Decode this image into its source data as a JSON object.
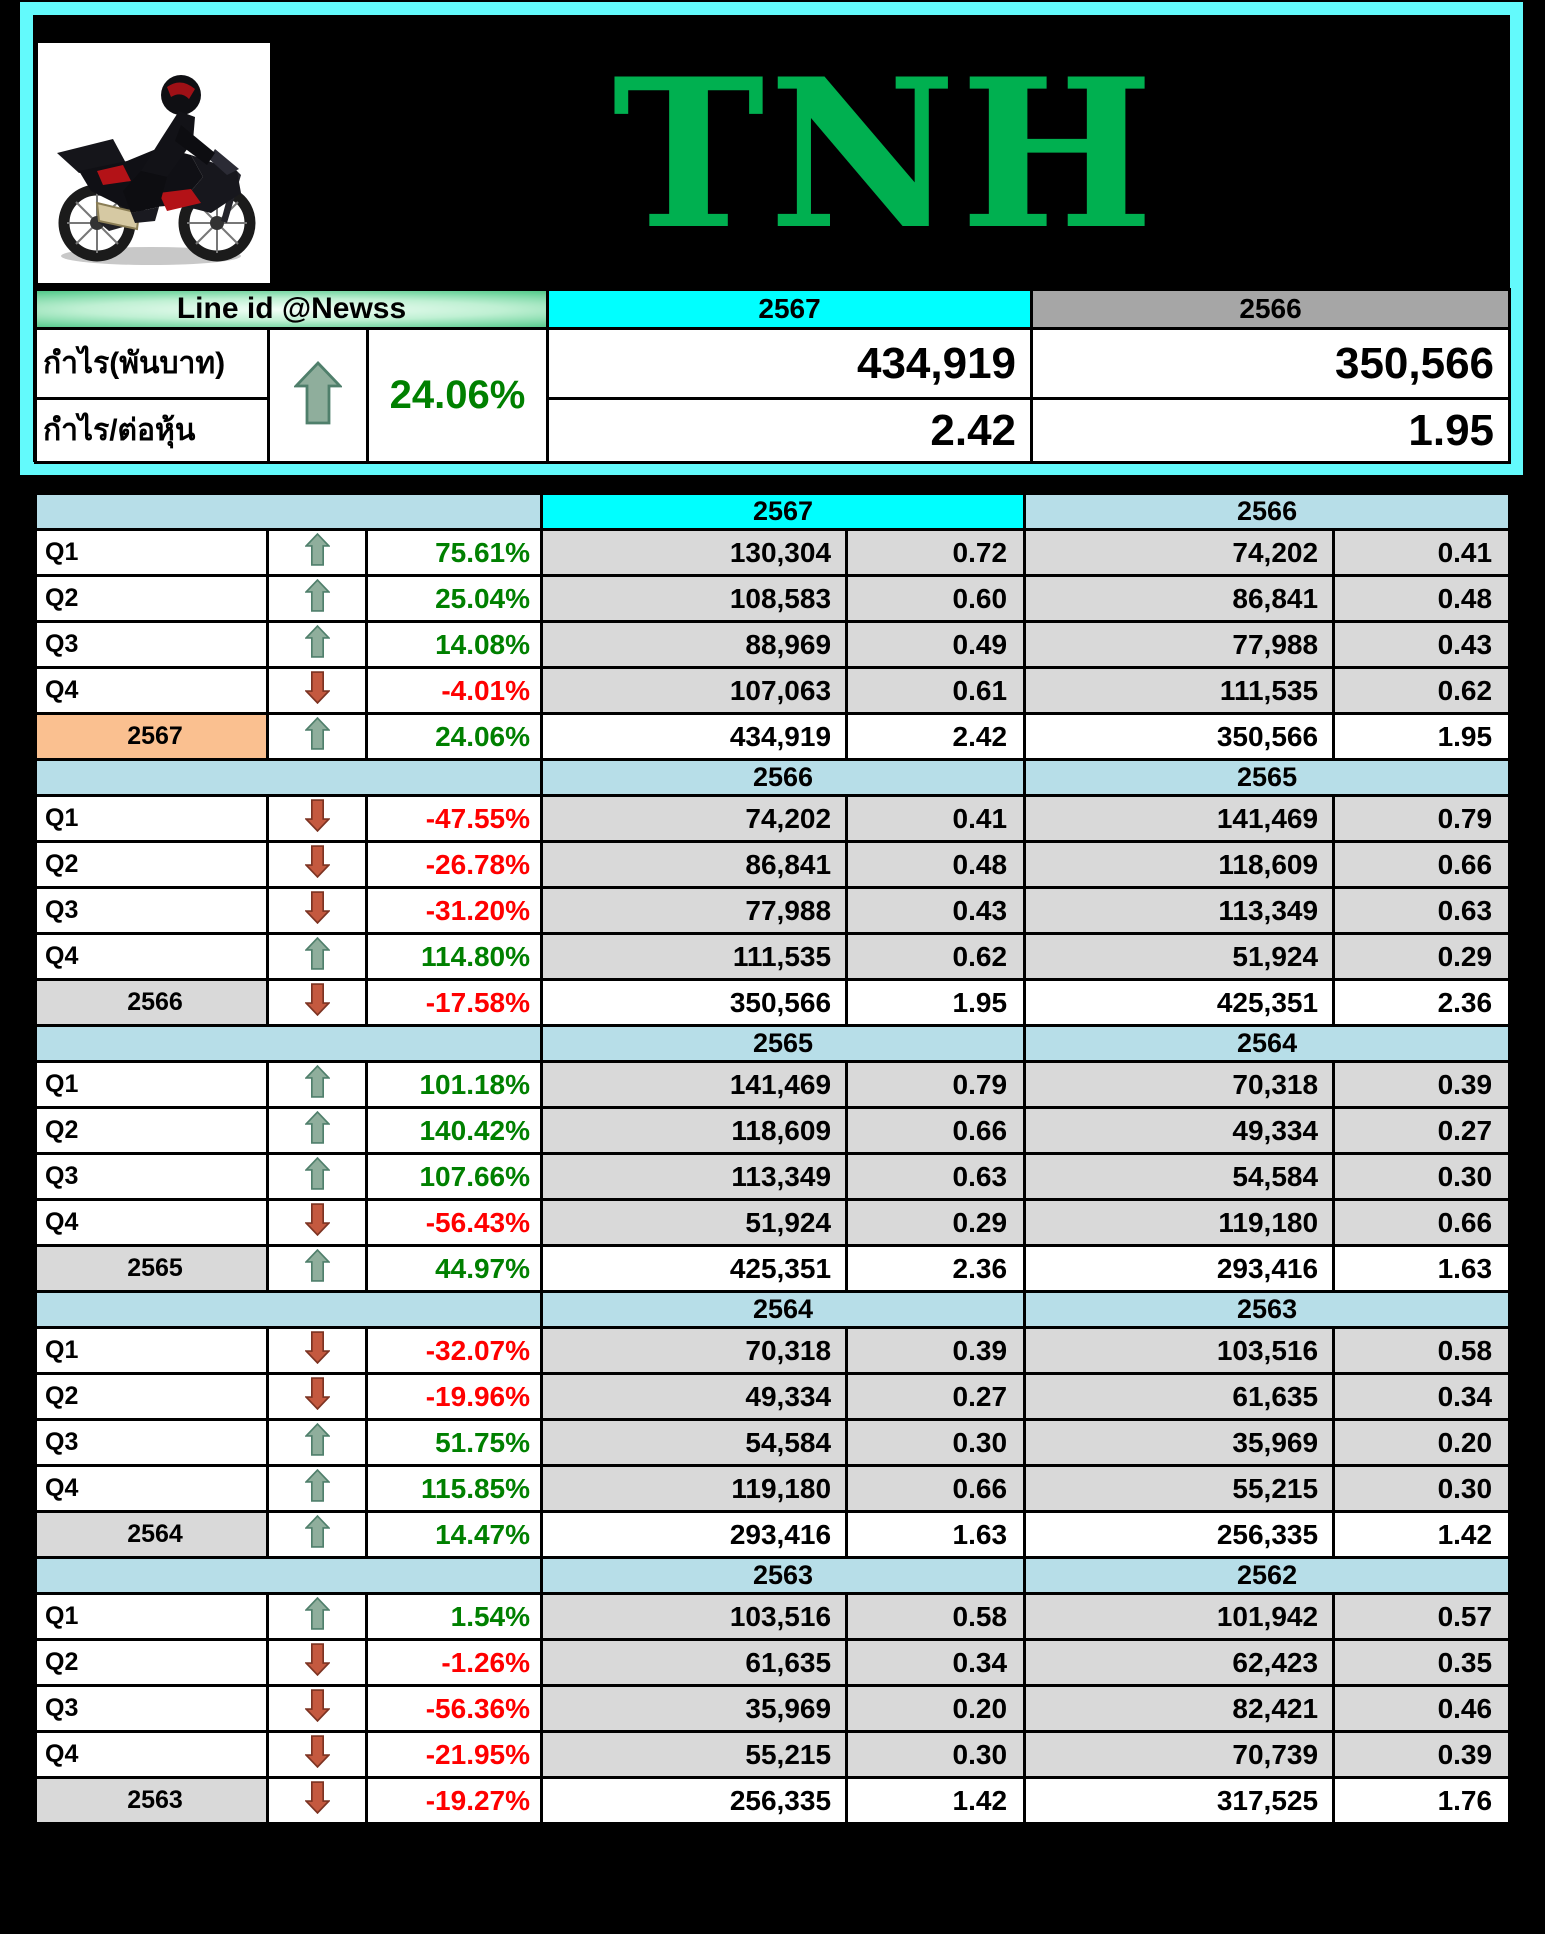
{
  "title": "TNH",
  "summary": {
    "line_id": "Line id @Newss",
    "col_current": "2567",
    "col_previous": "2566",
    "change_percent": "24.06%",
    "change_direction": "up",
    "rows": [
      {
        "label": "กำไร(พันบาท)",
        "current": "434,919",
        "previous": "350,566"
      },
      {
        "label": "กำไร/ต่อหุ้น",
        "current": "2.42",
        "previous": "1.95"
      }
    ]
  },
  "sections": [
    {
      "year_left": "2567",
      "year_right": "2566",
      "highlight_left": true,
      "rows": [
        {
          "type": "quarter",
          "label": "Q1",
          "dir": "up",
          "pct": "75.61%",
          "v1": "130,304",
          "e1": "0.72",
          "v2": "74,202",
          "e2": "0.41"
        },
        {
          "type": "quarter",
          "label": "Q2",
          "dir": "up",
          "pct": "25.04%",
          "v1": "108,583",
          "e1": "0.60",
          "v2": "86,841",
          "e2": "0.48"
        },
        {
          "type": "quarter",
          "label": "Q3",
          "dir": "up",
          "pct": "14.08%",
          "v1": "88,969",
          "e1": "0.49",
          "v2": "77,988",
          "e2": "0.43"
        },
        {
          "type": "quarter",
          "label": "Q4",
          "dir": "down",
          "pct": "-4.01%",
          "v1": "107,063",
          "e1": "0.61",
          "v2": "111,535",
          "e2": "0.62"
        },
        {
          "type": "year",
          "label_bg": "orange",
          "label": "2567",
          "dir": "up",
          "pct": "24.06%",
          "v1": "434,919",
          "e1": "2.42",
          "v2": "350,566",
          "e2": "1.95"
        }
      ]
    },
    {
      "year_left": "2566",
      "year_right": "2565",
      "highlight_left": false,
      "rows": [
        {
          "type": "quarter",
          "label": "Q1",
          "dir": "down",
          "pct": "-47.55%",
          "v1": "74,202",
          "e1": "0.41",
          "v2": "141,469",
          "e2": "0.79"
        },
        {
          "type": "quarter",
          "label": "Q2",
          "dir": "down",
          "pct": "-26.78%",
          "v1": "86,841",
          "e1": "0.48",
          "v2": "118,609",
          "e2": "0.66"
        },
        {
          "type": "quarter",
          "label": "Q3",
          "dir": "down",
          "pct": "-31.20%",
          "v1": "77,988",
          "e1": "0.43",
          "v2": "113,349",
          "e2": "0.63"
        },
        {
          "type": "quarter",
          "label": "Q4",
          "dir": "up",
          "pct": "114.80%",
          "v1": "111,535",
          "e1": "0.62",
          "v2": "51,924",
          "e2": "0.29"
        },
        {
          "type": "year",
          "label_bg": "silver",
          "label": "2566",
          "dir": "down",
          "pct": "-17.58%",
          "v1": "350,566",
          "e1": "1.95",
          "v2": "425,351",
          "e2": "2.36"
        }
      ]
    },
    {
      "year_left": "2565",
      "year_right": "2564",
      "highlight_left": false,
      "rows": [
        {
          "type": "quarter",
          "label": "Q1",
          "dir": "up",
          "pct": "101.18%",
          "v1": "141,469",
          "e1": "0.79",
          "v2": "70,318",
          "e2": "0.39"
        },
        {
          "type": "quarter",
          "label": "Q2",
          "dir": "up",
          "pct": "140.42%",
          "v1": "118,609",
          "e1": "0.66",
          "v2": "49,334",
          "e2": "0.27"
        },
        {
          "type": "quarter",
          "label": "Q3",
          "dir": "up",
          "pct": "107.66%",
          "v1": "113,349",
          "e1": "0.63",
          "v2": "54,584",
          "e2": "0.30"
        },
        {
          "type": "quarter",
          "label": "Q4",
          "dir": "down",
          "pct": "-56.43%",
          "v1": "51,924",
          "e1": "0.29",
          "v2": "119,180",
          "e2": "0.66"
        },
        {
          "type": "year",
          "label_bg": "silver",
          "label": "2565",
          "dir": "up",
          "pct": "44.97%",
          "v1": "425,351",
          "e1": "2.36",
          "v2": "293,416",
          "e2": "1.63"
        }
      ]
    },
    {
      "year_left": "2564",
      "year_right": "2563",
      "highlight_left": false,
      "rows": [
        {
          "type": "quarter",
          "label": "Q1",
          "dir": "down",
          "pct": "-32.07%",
          "v1": "70,318",
          "e1": "0.39",
          "v2": "103,516",
          "e2": "0.58"
        },
        {
          "type": "quarter",
          "label": "Q2",
          "dir": "down",
          "pct": "-19.96%",
          "v1": "49,334",
          "e1": "0.27",
          "v2": "61,635",
          "e2": "0.34"
        },
        {
          "type": "quarter",
          "label": "Q3",
          "dir": "up",
          "pct": "51.75%",
          "v1": "54,584",
          "e1": "0.30",
          "v2": "35,969",
          "e2": "0.20"
        },
        {
          "type": "quarter",
          "label": "Q4",
          "dir": "up",
          "pct": "115.85%",
          "v1": "119,180",
          "e1": "0.66",
          "v2": "55,215",
          "e2": "0.30"
        },
        {
          "type": "year",
          "label_bg": "silver",
          "label": "2564",
          "dir": "up",
          "pct": "14.47%",
          "v1": "293,416",
          "e1": "1.63",
          "v2": "256,335",
          "e2": "1.42"
        }
      ]
    },
    {
      "year_left": "2563",
      "year_right": "2562",
      "highlight_left": false,
      "rows": [
        {
          "type": "quarter",
          "label": "Q1",
          "dir": "up",
          "pct": "1.54%",
          "v1": "103,516",
          "e1": "0.58",
          "v2": "101,942",
          "e2": "0.57"
        },
        {
          "type": "quarter",
          "label": "Q2",
          "dir": "down",
          "pct": "-1.26%",
          "v1": "61,635",
          "e1": "0.34",
          "v2": "62,423",
          "e2": "0.35"
        },
        {
          "type": "quarter",
          "label": "Q3",
          "dir": "down",
          "pct": "-56.36%",
          "v1": "35,969",
          "e1": "0.20",
          "v2": "82,421",
          "e2": "0.46"
        },
        {
          "type": "quarter",
          "label": "Q4",
          "dir": "down",
          "pct": "-21.95%",
          "v1": "55,215",
          "e1": "0.30",
          "v2": "70,739",
          "e2": "0.39"
        },
        {
          "type": "year",
          "label_bg": "silver",
          "label": "2563",
          "dir": "down",
          "pct": "-19.27%",
          "v1": "256,335",
          "e1": "1.42",
          "v2": "317,525",
          "e2": "1.76"
        }
      ]
    }
  ],
  "icons": {
    "up_arrow": "up-arrow-icon",
    "down_arrow": "down-arrow-icon",
    "logo": "motorcycle-logo"
  },
  "colors": {
    "frame_cyan": "#63FAFC",
    "header_cyan": "#00FFFF",
    "header_gray": "#A6A6A6",
    "section_blue": "#B7DEE8",
    "cell_gray": "#D9D9D9",
    "year_label_silver": "#D9D9D9",
    "year_2567_orange": "#FAC090",
    "up_green": "#008000",
    "down_red": "#FF0000",
    "arrow_up_fill": "#8FAE9C",
    "arrow_down_fill": "#C4593F",
    "tnh_green": "#00B050",
    "lineid_green": "#00A651"
  }
}
